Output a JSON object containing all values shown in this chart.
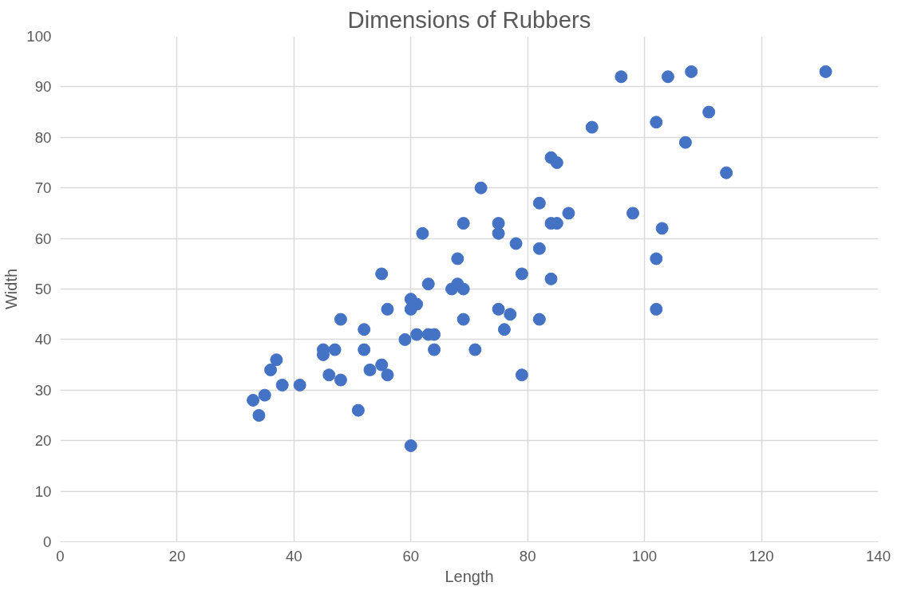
{
  "chart_data": {
    "type": "scatter",
    "title": "Dimensions of Rubbers",
    "xlabel": "Length",
    "ylabel": "Width",
    "x": [
      33,
      34,
      35,
      36,
      37,
      38,
      41,
      45,
      45,
      46,
      47,
      48,
      48,
      51,
      52,
      52,
      53,
      55,
      55,
      56,
      56,
      59,
      60,
      60,
      60,
      61,
      61,
      62,
      63,
      63,
      64,
      64,
      67,
      68,
      68,
      69,
      69,
      69,
      71,
      72,
      75,
      75,
      75,
      76,
      77,
      78,
      79,
      79,
      82,
      82,
      82,
      84,
      84,
      84,
      85,
      85,
      87,
      91,
      96,
      98,
      102,
      102,
      102,
      103,
      104,
      107,
      108,
      111,
      114,
      131
    ],
    "values": [
      28,
      25,
      29,
      34,
      36,
      31,
      31,
      38,
      37,
      33,
      38,
      44,
      32,
      26,
      42,
      38,
      34,
      53,
      35,
      46,
      33,
      40,
      48,
      46,
      19,
      47,
      41,
      61,
      51,
      41,
      41,
      38,
      50,
      56,
      51,
      63,
      50,
      44,
      38,
      70,
      63,
      61,
      46,
      42,
      45,
      59,
      53,
      33,
      67,
      58,
      44,
      76,
      63,
      52,
      75,
      63,
      65,
      82,
      92,
      65,
      83,
      56,
      46,
      62,
      92,
      79,
      93,
      85,
      73,
      93
    ],
    "color": "#4472c4",
    "marker": "circle",
    "xlim": [
      0,
      140
    ],
    "xticks": [
      0,
      20,
      40,
      60,
      80,
      100,
      120,
      140
    ],
    "ylim": [
      0,
      100
    ],
    "yticks": [
      0,
      10,
      20,
      30,
      40,
      50,
      60,
      70,
      80,
      90,
      100
    ],
    "grid": true
  }
}
